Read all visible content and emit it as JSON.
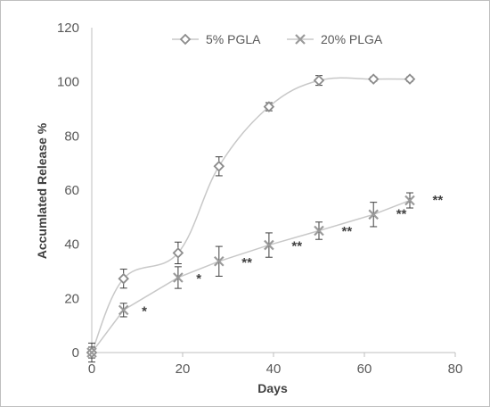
{
  "chart_data": {
    "type": "line",
    "xlabel": "Days",
    "ylabel": "Accumlated  Release %",
    "xlim": [
      0,
      80
    ],
    "ylim": [
      0,
      120
    ],
    "xticks": [
      0,
      20,
      40,
      60,
      80
    ],
    "yticks": [
      0,
      20,
      40,
      60,
      80,
      100,
      120
    ],
    "grid": false,
    "legend_position": "top",
    "series": [
      {
        "name": "5% PGLA",
        "marker": "diamond",
        "color": "#a6a6a6",
        "smooth": true,
        "points": [
          {
            "x": 0,
            "y": 0,
            "err": 3.5
          },
          {
            "x": 7,
            "y": 27.3,
            "err": 3.5
          },
          {
            "x": 19,
            "y": 36.8,
            "err": 4
          },
          {
            "x": 28,
            "y": 68.8,
            "err": 3.5
          },
          {
            "x": 39,
            "y": 90.8,
            "err": 1.5
          },
          {
            "x": 50,
            "y": 100.5,
            "err": 1.8
          },
          {
            "x": 62,
            "y": 101,
            "err": 0.8
          },
          {
            "x": 70,
            "y": 101,
            "err": 0.8
          }
        ]
      },
      {
        "name": "20% PLGA",
        "marker": "x",
        "color": "#a6a6a6",
        "smooth": false,
        "points": [
          {
            "x": 0,
            "y": 0,
            "err": 2
          },
          {
            "x": 7,
            "y": 15.7,
            "err": 2.5
          },
          {
            "x": 19,
            "y": 27.7,
            "err": 4
          },
          {
            "x": 28,
            "y": 33.7,
            "err": 5.5
          },
          {
            "x": 39,
            "y": 39.7,
            "err": 4.5
          },
          {
            "x": 50,
            "y": 45,
            "err": 3.2
          },
          {
            "x": 62,
            "y": 51,
            "err": 4.5
          },
          {
            "x": 70,
            "y": 56.2,
            "err": 2.8
          }
        ]
      }
    ],
    "annotations": [
      {
        "text": "*",
        "x": 11,
        "y": 16
      },
      {
        "text": "*",
        "x": 23,
        "y": 28
      },
      {
        "text": "**",
        "x": 33,
        "y": 34
      },
      {
        "text": "**",
        "x": 44,
        "y": 40
      },
      {
        "text": "**",
        "x": 55,
        "y": 45.5
      },
      {
        "text": "**",
        "x": 67,
        "y": 52
      },
      {
        "text": "**",
        "x": 75,
        "y": 57
      }
    ]
  }
}
